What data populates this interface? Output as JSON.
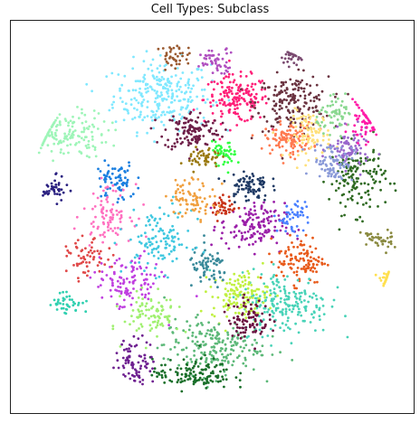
{
  "chart_data": {
    "type": "scatter",
    "title": "Cell Types: Subclass",
    "xlabel": "",
    "ylabel": "",
    "axes_visible": false,
    "grid": false,
    "legend": "none",
    "xlim": [
      -1.0,
      1.0
    ],
    "ylim": [
      -1.0,
      1.0
    ],
    "clusters": [
      {
        "name": "",
        "color": "#80e8ff",
        "center": [
          -0.25,
          0.62
        ],
        "spread": [
          0.12,
          0.09
        ],
        "n": 260
      },
      {
        "name": "",
        "color": "#ff1f78",
        "center": [
          0.12,
          0.6
        ],
        "spread": [
          0.08,
          0.06
        ],
        "n": 170
      },
      {
        "name": "",
        "color": "#6a3340",
        "center": [
          0.4,
          0.58
        ],
        "spread": [
          0.09,
          0.07
        ],
        "n": 180
      },
      {
        "name": "",
        "color": "#6e1f48",
        "center": [
          -0.1,
          0.44
        ],
        "spread": [
          0.07,
          0.05
        ],
        "n": 130
      },
      {
        "name": "",
        "color": "#9ef5b8",
        "center": [
          -0.74,
          0.42
        ],
        "spread": [
          0.11,
          0.06
        ],
        "n": 160
      },
      {
        "name": "",
        "color": "#ff7a50",
        "center": [
          0.38,
          0.4
        ],
        "spread": [
          0.06,
          0.04
        ],
        "n": 110
      },
      {
        "name": "",
        "color": "#ffe07a",
        "center": [
          0.49,
          0.42
        ],
        "spread": [
          0.05,
          0.06
        ],
        "n": 90
      },
      {
        "name": "",
        "color": "#2f6a22",
        "center": [
          0.72,
          0.2
        ],
        "spread": [
          0.07,
          0.09
        ],
        "n": 150
      },
      {
        "name": "",
        "color": "#9966cc",
        "center": [
          0.68,
          0.34
        ],
        "spread": [
          0.05,
          0.05
        ],
        "n": 80
      },
      {
        "name": "",
        "color": "#ff1aa8",
        "center": [
          0.76,
          0.48
        ],
        "spread": [
          0.04,
          0.05
        ],
        "n": 60
      },
      {
        "name": "",
        "color": "#8a9ad8",
        "center": [
          0.6,
          0.28
        ],
        "spread": [
          0.05,
          0.05
        ],
        "n": 80
      },
      {
        "name": "",
        "color": "#9a1fa8",
        "center": [
          0.2,
          -0.05
        ],
        "spread": [
          0.08,
          0.06
        ],
        "n": 140
      },
      {
        "name": "",
        "color": "#e85a1a",
        "center": [
          0.44,
          -0.22
        ],
        "spread": [
          0.06,
          0.06
        ],
        "n": 110
      },
      {
        "name": "",
        "color": "#48d3b8",
        "center": [
          0.36,
          -0.44
        ],
        "spread": [
          0.11,
          0.08
        ],
        "n": 200
      },
      {
        "name": "",
        "color": "#c0f040",
        "center": [
          0.14,
          -0.4
        ],
        "spread": [
          0.07,
          0.06
        ],
        "n": 140
      },
      {
        "name": "",
        "color": "#5cb878",
        "center": [
          0.0,
          -0.66
        ],
        "spread": [
          0.12,
          0.07
        ],
        "n": 200
      },
      {
        "name": "",
        "color": "#1a6f2a",
        "center": [
          -0.1,
          -0.8
        ],
        "spread": [
          0.1,
          0.04
        ],
        "n": 130
      },
      {
        "name": "",
        "color": "#6e2090",
        "center": [
          -0.38,
          -0.74
        ],
        "spread": [
          0.05,
          0.06
        ],
        "n": 80
      },
      {
        "name": "",
        "color": "#6b1040",
        "center": [
          0.18,
          -0.52
        ],
        "spread": [
          0.05,
          0.05
        ],
        "n": 90
      },
      {
        "name": "",
        "color": "#1f3a64",
        "center": [
          0.18,
          0.16
        ],
        "spread": [
          0.05,
          0.04
        ],
        "n": 80
      },
      {
        "name": "",
        "color": "#c83218",
        "center": [
          0.06,
          0.05
        ],
        "spread": [
          0.03,
          0.03
        ],
        "n": 40
      },
      {
        "name": "",
        "color": "#30ff40",
        "center": [
          0.06,
          0.32
        ],
        "spread": [
          0.03,
          0.03
        ],
        "n": 45
      },
      {
        "name": "",
        "color": "#9a7a10",
        "center": [
          -0.04,
          0.3
        ],
        "spread": [
          0.04,
          0.03
        ],
        "n": 50
      },
      {
        "name": "",
        "color": "#8ad890",
        "center": [
          0.62,
          0.52
        ],
        "spread": [
          0.05,
          0.04
        ],
        "n": 60
      },
      {
        "name": "",
        "color": "#3a8a9a",
        "center": [
          -0.02,
          -0.26
        ],
        "spread": [
          0.05,
          0.05
        ],
        "n": 70
      },
      {
        "name": "",
        "color": "#1a7fe0",
        "center": [
          -0.48,
          0.18
        ],
        "spread": [
          0.05,
          0.05
        ],
        "n": 70
      },
      {
        "name": "",
        "color": "#ff70c0",
        "center": [
          -0.52,
          0.02
        ],
        "spread": [
          0.06,
          0.07
        ],
        "n": 90
      },
      {
        "name": "",
        "color": "#40c8e0",
        "center": [
          -0.26,
          -0.12
        ],
        "spread": [
          0.08,
          0.08
        ],
        "n": 120
      },
      {
        "name": "",
        "color": "#c040e0",
        "center": [
          -0.42,
          -0.34
        ],
        "spread": [
          0.08,
          0.07
        ],
        "n": 110
      },
      {
        "name": "",
        "color": "#a0f070",
        "center": [
          -0.3,
          -0.5
        ],
        "spread": [
          0.07,
          0.06
        ],
        "n": 90
      },
      {
        "name": "",
        "color": "#2a2080",
        "center": [
          -0.78,
          0.14
        ],
        "spread": [
          0.03,
          0.03
        ],
        "n": 40
      },
      {
        "name": "",
        "color": "#ffe050",
        "center": [
          0.88,
          -0.32
        ],
        "spread": [
          0.03,
          0.02
        ],
        "n": 30
      },
      {
        "name": "",
        "color": "#8a8a40",
        "center": [
          0.82,
          -0.12
        ],
        "spread": [
          0.04,
          0.03
        ],
        "n": 40
      },
      {
        "name": "",
        "color": "#4a80ff",
        "center": [
          0.4,
          0.0
        ],
        "spread": [
          0.04,
          0.04
        ],
        "n": 50
      },
      {
        "name": "",
        "color": "#e04848",
        "center": [
          -0.62,
          -0.22
        ],
        "spread": [
          0.05,
          0.05
        ],
        "n": 60
      },
      {
        "name": "",
        "color": "#b050c0",
        "center": [
          0.02,
          0.8
        ],
        "spread": [
          0.05,
          0.03
        ],
        "n": 50
      },
      {
        "name": "",
        "color": "#30d0b0",
        "center": [
          -0.72,
          -0.44
        ],
        "spread": [
          0.04,
          0.03
        ],
        "n": 40
      },
      {
        "name": "",
        "color": "#9a5a30",
        "center": [
          -0.18,
          0.82
        ],
        "spread": [
          0.04,
          0.03
        ],
        "n": 40
      },
      {
        "name": "",
        "color": "#7a4a70",
        "center": [
          0.4,
          0.82
        ],
        "spread": [
          0.03,
          0.02
        ],
        "n": 30
      },
      {
        "name": "",
        "color": "#f0a040",
        "center": [
          -0.1,
          0.1
        ],
        "spread": [
          0.06,
          0.05
        ],
        "n": 80
      }
    ]
  }
}
